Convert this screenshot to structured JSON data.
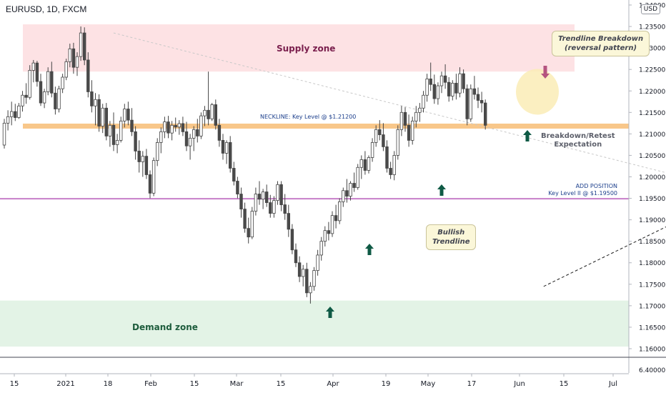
{
  "header": {
    "symbol": "EURUSD, 1D, FXCM",
    "currency": "USD"
  },
  "annotations": {
    "supply_zone": "Supply zone",
    "demand_zone": "Demand zone",
    "neckline": "NECKLINE: Key Level @ $1.21200",
    "add_position_1": "ADD POSITION",
    "add_position_2": "Key Level II @ $1.19500",
    "trendline_breakdown_1": "Trendline Breakdown",
    "trendline_breakdown_2": "(reversal pattern)",
    "bullish_trendline_1": "Bullish",
    "bullish_trendline_2": "Trendline",
    "breakdown_retest_1": "Breakdown/Retest",
    "breakdown_retest_2": "Expectation"
  },
  "colors": {
    "supply_zone": "#fde2e4",
    "demand_zone": "#e3f3e6",
    "neckline": "#f8c78a",
    "key_level_2": "#c77fc9",
    "bull_candle": "#ffffff",
    "bear_candle": "#4a4a4a",
    "arrow_up": "#0f5a45",
    "arrow_down": "#b5547f",
    "highlight_circle": "#faecb6"
  },
  "chart_data": {
    "type": "candlestick",
    "title": "EURUSD, 1D, FXCM",
    "x_tick_labels": [
      "15",
      "2021",
      "18",
      "Feb",
      "15",
      "Mar",
      "15",
      "Apr",
      "19",
      "May",
      "17",
      "Jun",
      "15",
      "Jul"
    ],
    "y_tick_labels": [
      "1.24000",
      "1.23500",
      "1.23000",
      "1.22500",
      "1.22000",
      "1.21500",
      "1.21000",
      "1.20500",
      "1.20000",
      "1.19500",
      "1.19000",
      "1.18500",
      "1.18000",
      "1.17500",
      "1.17000",
      "1.16500",
      "1.16000"
    ],
    "y_ticks": [
      1.24,
      1.235,
      1.23,
      1.225,
      1.22,
      1.215,
      1.21,
      1.205,
      1.2,
      1.195,
      1.19,
      1.185,
      1.18,
      1.175,
      1.17,
      1.165,
      1.16
    ],
    "ylim": [
      1.1595,
      1.2405
    ],
    "sub_panel_tick": "6.40000",
    "levels": [
      {
        "name": "Supply zone",
        "from": 1.2245,
        "to": 1.2355
      },
      {
        "name": "Demand zone",
        "from": 1.1605,
        "to": 1.1712
      },
      {
        "name": "Neckline",
        "value": 1.2118
      },
      {
        "name": "Key Level II",
        "value": 1.1949
      }
    ],
    "trendlines": [
      {
        "name": "Bullish Trendline",
        "from": {
          "bar": 148,
          "price": 1.1745
        },
        "to": {
          "bar": 274,
          "price": 1.2265
        }
      },
      {
        "name": "Descending trendline",
        "from": {
          "bar": 30,
          "price": 1.2335
        },
        "to": {
          "bar": 297,
          "price": 1.1762
        }
      }
    ],
    "candles": [
      {
        "o": 1.2074,
        "h": 1.2135,
        "l": 1.2066,
        "c": 1.2125
      },
      {
        "o": 1.2125,
        "h": 1.2155,
        "l": 1.2108,
        "c": 1.214
      },
      {
        "o": 1.214,
        "h": 1.2175,
        "l": 1.212,
        "c": 1.2152
      },
      {
        "o": 1.2152,
        "h": 1.217,
        "l": 1.213,
        "c": 1.2138
      },
      {
        "o": 1.2138,
        "h": 1.2172,
        "l": 1.2135,
        "c": 1.2165
      },
      {
        "o": 1.2165,
        "h": 1.22,
        "l": 1.2152,
        "c": 1.219
      },
      {
        "o": 1.219,
        "h": 1.2218,
        "l": 1.217,
        "c": 1.2185
      },
      {
        "o": 1.2185,
        "h": 1.226,
        "l": 1.218,
        "c": 1.2248
      },
      {
        "o": 1.2248,
        "h": 1.2272,
        "l": 1.222,
        "c": 1.2265
      },
      {
        "o": 1.2265,
        "h": 1.227,
        "l": 1.221,
        "c": 1.2222
      },
      {
        "o": 1.2222,
        "h": 1.224,
        "l": 1.2165,
        "c": 1.2172
      },
      {
        "o": 1.2172,
        "h": 1.2205,
        "l": 1.216,
        "c": 1.2198
      },
      {
        "o": 1.2198,
        "h": 1.2255,
        "l": 1.219,
        "c": 1.2245
      },
      {
        "o": 1.2245,
        "h": 1.2268,
        "l": 1.2185,
        "c": 1.2195
      },
      {
        "o": 1.2195,
        "h": 1.221,
        "l": 1.2145,
        "c": 1.2158
      },
      {
        "o": 1.2158,
        "h": 1.2212,
        "l": 1.215,
        "c": 1.2205
      },
      {
        "o": 1.2205,
        "h": 1.224,
        "l": 1.2195,
        "c": 1.2232
      },
      {
        "o": 1.2232,
        "h": 1.2275,
        "l": 1.2225,
        "c": 1.2268
      },
      {
        "o": 1.2268,
        "h": 1.231,
        "l": 1.2255,
        "c": 1.2298
      },
      {
        "o": 1.2298,
        "h": 1.2312,
        "l": 1.224,
        "c": 1.2255
      },
      {
        "o": 1.2255,
        "h": 1.229,
        "l": 1.2235,
        "c": 1.228
      },
      {
        "o": 1.228,
        "h": 1.235,
        "l": 1.227,
        "c": 1.2335
      },
      {
        "o": 1.2335,
        "h": 1.2348,
        "l": 1.226,
        "c": 1.2272
      },
      {
        "o": 1.2272,
        "h": 1.229,
        "l": 1.2185,
        "c": 1.2198
      },
      {
        "o": 1.2198,
        "h": 1.2225,
        "l": 1.215,
        "c": 1.2165
      },
      {
        "o": 1.2165,
        "h": 1.2195,
        "l": 1.212,
        "c": 1.218
      },
      {
        "o": 1.218,
        "h": 1.2192,
        "l": 1.2105,
        "c": 1.2118
      },
      {
        "o": 1.2118,
        "h": 1.217,
        "l": 1.2102,
        "c": 1.216
      },
      {
        "o": 1.216,
        "h": 1.2172,
        "l": 1.2085,
        "c": 1.2095
      },
      {
        "o": 1.2095,
        "h": 1.213,
        "l": 1.207,
        "c": 1.212
      },
      {
        "o": 1.212,
        "h": 1.215,
        "l": 1.206,
        "c": 1.2075
      },
      {
        "o": 1.2075,
        "h": 1.21,
        "l": 1.2055,
        "c": 1.2085
      },
      {
        "o": 1.2085,
        "h": 1.214,
        "l": 1.208,
        "c": 1.213
      },
      {
        "o": 1.213,
        "h": 1.217,
        "l": 1.2115,
        "c": 1.2158
      },
      {
        "o": 1.2158,
        "h": 1.2175,
        "l": 1.212,
        "c": 1.2132
      },
      {
        "o": 1.2132,
        "h": 1.216,
        "l": 1.2095,
        "c": 1.2105
      },
      {
        "o": 1.2105,
        "h": 1.2118,
        "l": 1.204,
        "c": 1.206
      },
      {
        "o": 1.206,
        "h": 1.2085,
        "l": 1.201,
        "c": 1.2035
      },
      {
        "o": 1.2035,
        "h": 1.206,
        "l": 1.2,
        "c": 1.2048
      },
      {
        "o": 1.2048,
        "h": 1.2065,
        "l": 1.1995,
        "c": 1.2005
      },
      {
        "o": 1.2005,
        "h": 1.2015,
        "l": 1.195,
        "c": 1.1962
      },
      {
        "o": 1.1962,
        "h": 1.2045,
        "l": 1.1955,
        "c": 1.2038
      },
      {
        "o": 1.2038,
        "h": 1.209,
        "l": 1.2025,
        "c": 1.208
      },
      {
        "o": 1.208,
        "h": 1.2115,
        "l": 1.2055,
        "c": 1.2105
      },
      {
        "o": 1.2105,
        "h": 1.214,
        "l": 1.209,
        "c": 1.2128
      },
      {
        "o": 1.2128,
        "h": 1.2142,
        "l": 1.209,
        "c": 1.2102
      },
      {
        "o": 1.2102,
        "h": 1.213,
        "l": 1.2085,
        "c": 1.212
      },
      {
        "o": 1.212,
        "h": 1.2138,
        "l": 1.2105,
        "c": 1.2116
      },
      {
        "o": 1.2116,
        "h": 1.2132,
        "l": 1.2098,
        "c": 1.2124
      },
      {
        "o": 1.2124,
        "h": 1.214,
        "l": 1.2095,
        "c": 1.2105
      },
      {
        "o": 1.2105,
        "h": 1.2128,
        "l": 1.206,
        "c": 1.2072
      },
      {
        "o": 1.2072,
        "h": 1.21,
        "l": 1.204,
        "c": 1.209
      },
      {
        "o": 1.209,
        "h": 1.2118,
        "l": 1.206,
        "c": 1.211
      },
      {
        "o": 1.211,
        "h": 1.2135,
        "l": 1.208,
        "c": 1.2095
      },
      {
        "o": 1.2095,
        "h": 1.215,
        "l": 1.2088,
        "c": 1.2142
      },
      {
        "o": 1.2142,
        "h": 1.2165,
        "l": 1.2118,
        "c": 1.2155
      },
      {
        "o": 1.2155,
        "h": 1.2245,
        "l": 1.212,
        "c": 1.2135
      },
      {
        "o": 1.2135,
        "h": 1.2172,
        "l": 1.213,
        "c": 1.2168
      },
      {
        "o": 1.2168,
        "h": 1.218,
        "l": 1.211,
        "c": 1.212
      },
      {
        "o": 1.212,
        "h": 1.2135,
        "l": 1.207,
        "c": 1.2085
      },
      {
        "o": 1.2085,
        "h": 1.21,
        "l": 1.204,
        "c": 1.2055
      },
      {
        "o": 1.2055,
        "h": 1.2085,
        "l": 1.203,
        "c": 1.208
      },
      {
        "o": 1.208,
        "h": 1.2095,
        "l": 1.201,
        "c": 1.202
      },
      {
        "o": 1.202,
        "h": 1.2035,
        "l": 1.198,
        "c": 1.199
      },
      {
        "o": 1.199,
        "h": 1.2,
        "l": 1.195,
        "c": 1.196
      },
      {
        "o": 1.196,
        "h": 1.1975,
        "l": 1.1905,
        "c": 1.1925
      },
      {
        "o": 1.1925,
        "h": 1.194,
        "l": 1.187,
        "c": 1.188
      },
      {
        "o": 1.188,
        "h": 1.1905,
        "l": 1.1845,
        "c": 1.186
      },
      {
        "o": 1.186,
        "h": 1.193,
        "l": 1.1855,
        "c": 1.192
      },
      {
        "o": 1.192,
        "h": 1.1975,
        "l": 1.191,
        "c": 1.196
      },
      {
        "o": 1.196,
        "h": 1.199,
        "l": 1.1935,
        "c": 1.1948
      },
      {
        "o": 1.1948,
        "h": 1.1972,
        "l": 1.1925,
        "c": 1.1965
      },
      {
        "o": 1.1965,
        "h": 1.1982,
        "l": 1.193,
        "c": 1.194
      },
      {
        "o": 1.194,
        "h": 1.1958,
        "l": 1.1905,
        "c": 1.1915
      },
      {
        "o": 1.1915,
        "h": 1.1955,
        "l": 1.1905,
        "c": 1.1945
      },
      {
        "o": 1.1945,
        "h": 1.199,
        "l": 1.1935,
        "c": 1.1982
      },
      {
        "o": 1.1982,
        "h": 1.199,
        "l": 1.192,
        "c": 1.1935
      },
      {
        "o": 1.1935,
        "h": 1.196,
        "l": 1.19,
        "c": 1.1915
      },
      {
        "o": 1.1915,
        "h": 1.1935,
        "l": 1.186,
        "c": 1.1878
      },
      {
        "o": 1.1878,
        "h": 1.189,
        "l": 1.182,
        "c": 1.183
      },
      {
        "o": 1.183,
        "h": 1.1845,
        "l": 1.179,
        "c": 1.18
      },
      {
        "o": 1.18,
        "h": 1.1815,
        "l": 1.1755,
        "c": 1.1768
      },
      {
        "o": 1.1768,
        "h": 1.1795,
        "l": 1.1745,
        "c": 1.1785
      },
      {
        "o": 1.1785,
        "h": 1.18,
        "l": 1.172,
        "c": 1.173
      },
      {
        "o": 1.173,
        "h": 1.1755,
        "l": 1.1705,
        "c": 1.1745
      },
      {
        "o": 1.1745,
        "h": 1.179,
        "l": 1.1735,
        "c": 1.1782
      },
      {
        "o": 1.1782,
        "h": 1.183,
        "l": 1.177,
        "c": 1.1818
      },
      {
        "o": 1.1818,
        "h": 1.186,
        "l": 1.1805,
        "c": 1.185
      },
      {
        "o": 1.185,
        "h": 1.1885,
        "l": 1.1838,
        "c": 1.1875
      },
      {
        "o": 1.1875,
        "h": 1.1895,
        "l": 1.1852,
        "c": 1.1868
      },
      {
        "o": 1.1868,
        "h": 1.192,
        "l": 1.186,
        "c": 1.191
      },
      {
        "o": 1.191,
        "h": 1.1935,
        "l": 1.188,
        "c": 1.1898
      },
      {
        "o": 1.1898,
        "h": 1.195,
        "l": 1.189,
        "c": 1.1942
      },
      {
        "o": 1.1942,
        "h": 1.1975,
        "l": 1.193,
        "c": 1.1968
      },
      {
        "o": 1.1968,
        "h": 1.1995,
        "l": 1.194,
        "c": 1.1955
      },
      {
        "o": 1.1955,
        "h": 1.199,
        "l": 1.1945,
        "c": 1.1985
      },
      {
        "o": 1.1985,
        "h": 1.201,
        "l": 1.1965,
        "c": 1.1975
      },
      {
        "o": 1.1975,
        "h": 1.203,
        "l": 1.197,
        "c": 1.2022
      },
      {
        "o": 1.2022,
        "h": 1.205,
        "l": 1.1995,
        "c": 1.204
      },
      {
        "o": 1.204,
        "h": 1.206,
        "l": 1.2005,
        "c": 1.2015
      },
      {
        "o": 1.2015,
        "h": 1.205,
        "l": 1.2008,
        "c": 1.2045
      },
      {
        "o": 1.2045,
        "h": 1.209,
        "l": 1.2035,
        "c": 1.208
      },
      {
        "o": 1.208,
        "h": 1.212,
        "l": 1.207,
        "c": 1.211
      },
      {
        "o": 1.211,
        "h": 1.2132,
        "l": 1.2085,
        "c": 1.2098
      },
      {
        "o": 1.2098,
        "h": 1.2125,
        "l": 1.206,
        "c": 1.207
      },
      {
        "o": 1.207,
        "h": 1.2085,
        "l": 1.201,
        "c": 1.202
      },
      {
        "o": 1.202,
        "h": 1.2035,
        "l": 1.1995,
        "c": 1.2005
      },
      {
        "o": 1.2005,
        "h": 1.206,
        "l": 1.1992,
        "c": 1.205
      },
      {
        "o": 1.205,
        "h": 1.212,
        "l": 1.204,
        "c": 1.211
      },
      {
        "o": 1.211,
        "h": 1.2165,
        "l": 1.2095,
        "c": 1.215
      },
      {
        "o": 1.215,
        "h": 1.2162,
        "l": 1.2105,
        "c": 1.212
      },
      {
        "o": 1.212,
        "h": 1.2145,
        "l": 1.207,
        "c": 1.2085
      },
      {
        "o": 1.2085,
        "h": 1.214,
        "l": 1.2075,
        "c": 1.213
      },
      {
        "o": 1.213,
        "h": 1.2165,
        "l": 1.2115,
        "c": 1.215
      },
      {
        "o": 1.215,
        "h": 1.2172,
        "l": 1.2128,
        "c": 1.216
      },
      {
        "o": 1.216,
        "h": 1.22,
        "l": 1.215,
        "c": 1.219
      },
      {
        "o": 1.219,
        "h": 1.224,
        "l": 1.2175,
        "c": 1.2228
      },
      {
        "o": 1.2228,
        "h": 1.2266,
        "l": 1.22,
        "c": 1.2215
      },
      {
        "o": 1.2215,
        "h": 1.2238,
        "l": 1.217,
        "c": 1.2182
      },
      {
        "o": 1.2182,
        "h": 1.222,
        "l": 1.2168,
        "c": 1.2212
      },
      {
        "o": 1.2212,
        "h": 1.2245,
        "l": 1.2195,
        "c": 1.2235
      },
      {
        "o": 1.2235,
        "h": 1.2262,
        "l": 1.2205,
        "c": 1.222
      },
      {
        "o": 1.222,
        "h": 1.2232,
        "l": 1.2175,
        "c": 1.2188
      },
      {
        "o": 1.2188,
        "h": 1.2225,
        "l": 1.2178,
        "c": 1.2218
      },
      {
        "o": 1.2218,
        "h": 1.224,
        "l": 1.218,
        "c": 1.2195
      },
      {
        "o": 1.2195,
        "h": 1.2255,
        "l": 1.2185,
        "c": 1.224
      },
      {
        "o": 1.224,
        "h": 1.225,
        "l": 1.2195,
        "c": 1.2205
      },
      {
        "o": 1.2205,
        "h": 1.2215,
        "l": 1.212,
        "c": 1.2135
      },
      {
        "o": 1.2135,
        "h": 1.2215,
        "l": 1.2128,
        "c": 1.2205
      },
      {
        "o": 1.2205,
        "h": 1.2235,
        "l": 1.218,
        "c": 1.2192
      },
      {
        "o": 1.2192,
        "h": 1.2208,
        "l": 1.216,
        "c": 1.2178
      },
      {
        "o": 1.2178,
        "h": 1.2198,
        "l": 1.215,
        "c": 1.2172
      },
      {
        "o": 1.2172,
        "h": 1.218,
        "l": 1.211,
        "c": 1.212
      }
    ]
  }
}
